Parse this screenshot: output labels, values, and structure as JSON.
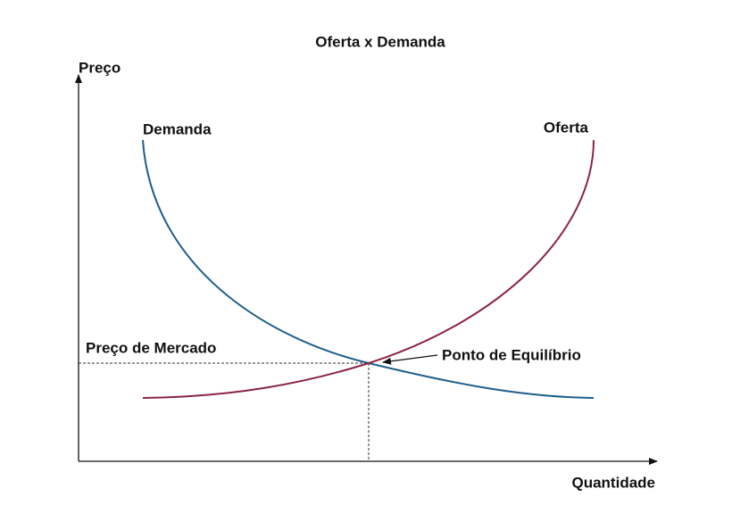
{
  "title": "Oferta x Demanda",
  "axes": {
    "y_label": "Preço",
    "x_label": "Quantidade"
  },
  "curves": [
    {
      "label": "Demanda"
    },
    {
      "label": "Oferta"
    }
  ],
  "annotations": {
    "market_price": "Preço de Mercado",
    "equilibrium": "Ponto de Equilíbrio"
  }
}
